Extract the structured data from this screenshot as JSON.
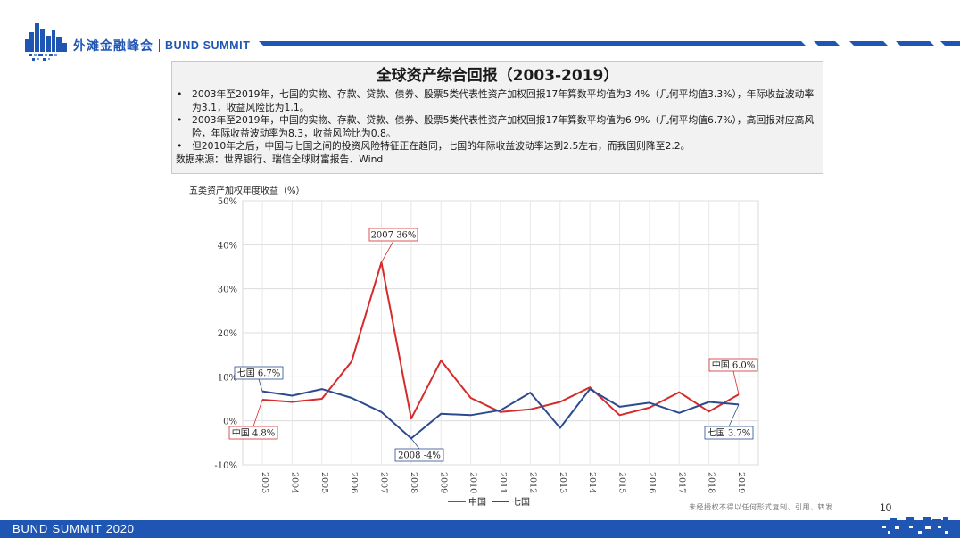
{
  "header": {
    "brand_cn": "外滩金融峰会",
    "brand_en": "BUND SUMMIT"
  },
  "info": {
    "title": "全球资产综合回报（2003-2019）",
    "bullets": [
      "2003年至2019年，七国的实物、存款、贷款、债券、股票5类代表性资产加权回报17年算数平均值为3.4%（几何平均值3.3%），年际收益波动率为3.1，收益风险比为1.1。",
      "2003年至2019年，中国的实物、存款、贷款、债券、股票5类代表性资产加权回报17年算数平均值为6.9%（几何平均值6.7%），高回报对应高风险，年际收益波动率为8.3，收益风险比为0.8。",
      "但2010年之后，中国与七国之间的投资风险特征正在趋同，七国的年际收益波动率达到2.5左右，而我国则降至2.2。"
    ],
    "source": "数据来源：世界银行、瑞信全球财富报告、Wind"
  },
  "chart_data": {
    "type": "line",
    "title": "五类资产加权年度收益（%）",
    "x": [
      "2003",
      "2004",
      "2005",
      "2006",
      "2007",
      "2008",
      "2009",
      "2010",
      "2011",
      "2012",
      "2013",
      "2014",
      "2015",
      "2016",
      "2017",
      "2018",
      "2019"
    ],
    "y_ticks": [
      "50%",
      "40%",
      "30%",
      "20%",
      "10%",
      "0%",
      "-10%"
    ],
    "ylim": [
      -10,
      50
    ],
    "grid": true,
    "legend_position": "bottom",
    "series": [
      {
        "name": "中国",
        "color": "#d52b2b",
        "values": [
          4.8,
          4.3,
          5.0,
          13.5,
          36,
          0.5,
          13.7,
          5.2,
          2.0,
          2.6,
          4.3,
          7.6,
          1.3,
          3.0,
          6.5,
          2.1,
          6.0
        ]
      },
      {
        "name": "七国",
        "color": "#2c4b8e",
        "values": [
          6.7,
          5.7,
          7.2,
          5.2,
          2.0,
          -4,
          1.6,
          1.3,
          2.4,
          6.4,
          -1.6,
          7.2,
          3.2,
          4.1,
          1.8,
          4.3,
          3.7
        ]
      }
    ],
    "annotations": [
      {
        "text": "2007 36%",
        "color": "#d52b2b"
      },
      {
        "text": "七国 6.7%",
        "color": "#2c4b8e"
      },
      {
        "text": "中国 4.8%",
        "color": "#d52b2b"
      },
      {
        "text": "2008 -4%",
        "color": "#2c4b8e"
      },
      {
        "text": "中国 6.0%",
        "color": "#d52b2b"
      },
      {
        "text": "七国 3.7%",
        "color": "#2c4b8e"
      }
    ]
  },
  "footer": {
    "page_number": "10",
    "note": "未经授权不得以任何形式复制、引用、转发",
    "event": "BUND SUMMIT 2020"
  },
  "colors": {
    "brand_blue": "#1f56b4",
    "china_red": "#d52b2b",
    "g7_blue": "#2c4b8e",
    "box_background": "#f2f2f2"
  }
}
